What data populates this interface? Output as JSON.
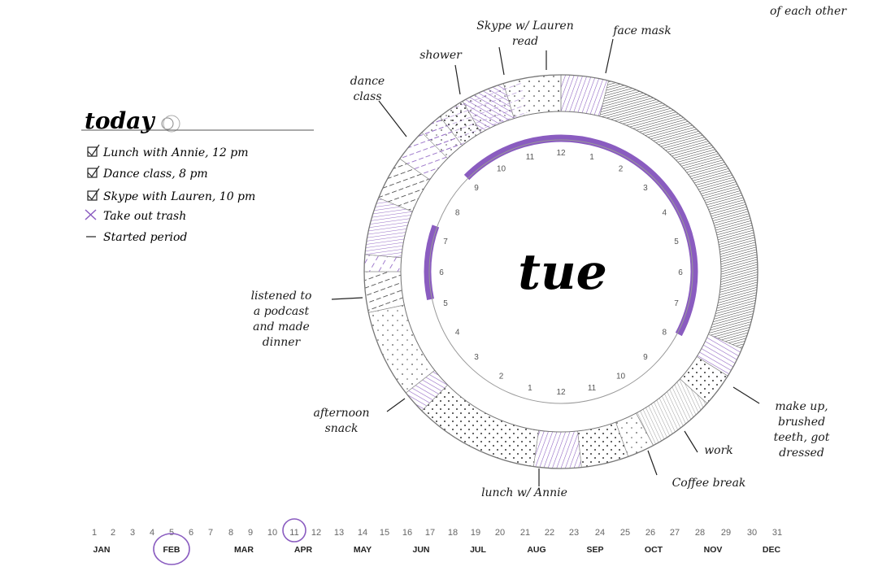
{
  "today": {
    "title": "today",
    "items": [
      {
        "text": "Lunch with Annie, 12 pm",
        "mark": "checked"
      },
      {
        "text": "Dance class, 8 pm",
        "mark": "checked"
      },
      {
        "text": "Skype with Lauren, 10 pm",
        "mark": "checked"
      },
      {
        "text": "Take out trash",
        "mark": "crossed"
      },
      {
        "text": "Started period",
        "mark": "dash"
      }
    ]
  },
  "dial": {
    "day": "tue",
    "hour_labels": [
      "1",
      "2",
      "3",
      "4",
      "5",
      "6",
      "7",
      "8",
      "9",
      "10",
      "11",
      "12",
      "1",
      "2",
      "3",
      "4",
      "5",
      "6",
      "7",
      "8",
      "9",
      "10",
      "11",
      "12"
    ]
  },
  "annotations": {
    "skype": [
      "Skype w/ Lauren",
      "read"
    ],
    "shower": [
      "shower"
    ],
    "face_mask": [
      "face mask"
    ],
    "dance": [
      "dance",
      "class"
    ],
    "top_right": [
      "of each other"
    ],
    "podcast": [
      "listened to",
      "a podcast",
      "and made",
      "dinner"
    ],
    "snack": [
      "afternoon",
      "snack"
    ],
    "lunch": [
      "lunch w/ Annie"
    ],
    "coffee": [
      "Coffee break"
    ],
    "work": [
      "work"
    ],
    "makeup": [
      "make up,",
      "brushed",
      "teeth, got",
      "dressed"
    ]
  },
  "timeline": {
    "days": [
      "1",
      "2",
      "3",
      "4",
      "5",
      "6",
      "7",
      "8",
      "9",
      "10",
      "11",
      "12",
      "13",
      "14",
      "15",
      "16",
      "17",
      "18",
      "19",
      "20",
      "21",
      "22",
      "23",
      "24",
      "25",
      "26",
      "27",
      "28",
      "29",
      "30",
      "31"
    ],
    "months": [
      "JAN",
      "FEB",
      "MAR",
      "APR",
      "MAY",
      "JUN",
      "JUL",
      "AUG",
      "SEP",
      "OCT",
      "NOV",
      "DEC"
    ],
    "circled_day": "11",
    "circled_month": "FEB"
  },
  "colors": {
    "accent": "#8a5cc0",
    "ink": "#1a1a1a",
    "ring": "#9a9a9a"
  }
}
